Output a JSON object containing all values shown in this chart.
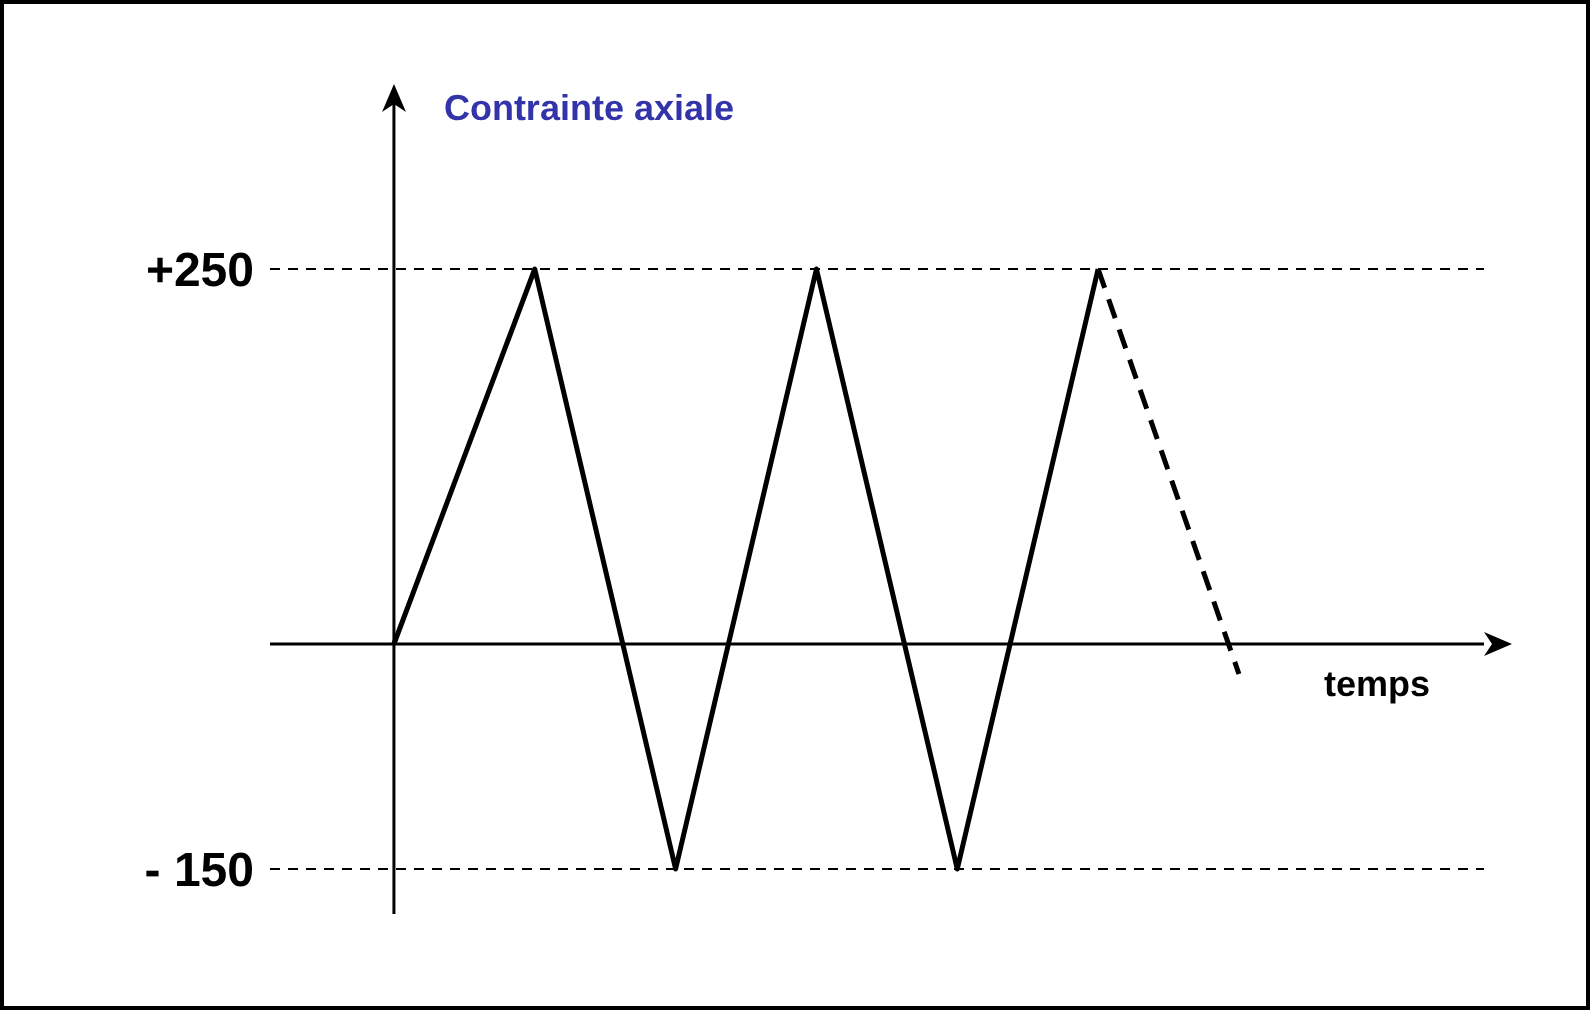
{
  "chart_data": {
    "type": "line",
    "ylabel": "Contrainte axiale",
    "xlabel": "temps",
    "categories": [
      null,
      null,
      null,
      null,
      null,
      null,
      null
    ],
    "series": [
      {
        "color": "#000000",
        "line_style": "solid",
        "values": [
          0,
          250,
          -150,
          250,
          -150,
          250,
          null
        ]
      },
      {
        "color": "#000000",
        "line_style": "dashed",
        "values": [
          null,
          null,
          null,
          null,
          null,
          250,
          -20
        ]
      }
    ],
    "ylim": [
      -180,
      360
    ],
    "yticks": [
      {
        "value": 250,
        "label": "+250"
      },
      {
        "value": -150,
        "label": "- 150"
      }
    ],
    "tick_labels": "y",
    "ref_lines": [
      {
        "axis": "y",
        "value": 250,
        "color": "#000000",
        "line_style": "dashed"
      },
      {
        "axis": "y",
        "value": -150,
        "color": "#000000",
        "line_style": "dashed"
      }
    ],
    "grid": false,
    "legend": false,
    "marker": "none"
  }
}
